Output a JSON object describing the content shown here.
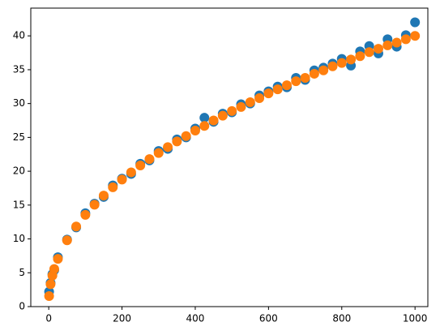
{
  "chart_data": {
    "type": "scatter",
    "x": [
      1,
      5,
      10,
      15,
      25,
      50,
      75,
      100,
      125,
      150,
      175,
      200,
      225,
      250,
      275,
      300,
      325,
      350,
      375,
      400,
      425,
      450,
      475,
      500,
      525,
      550,
      575,
      600,
      625,
      650,
      675,
      700,
      725,
      750,
      775,
      800,
      825,
      850,
      875,
      900,
      925,
      950,
      975,
      1000
    ],
    "series": [
      {
        "color": "#1f77b4",
        "values": [
          2.2,
          3.5,
          4.8,
          5.4,
          7.3,
          9.9,
          11.7,
          13.8,
          15.2,
          16.2,
          17.9,
          18.9,
          19.6,
          21.1,
          21.6,
          23.0,
          23.3,
          24.7,
          25.0,
          26.3,
          27.9,
          27.3,
          28.5,
          28.7,
          29.9,
          30.0,
          31.2,
          31.8,
          32.5,
          32.4,
          33.8,
          33.5,
          34.9,
          35.3,
          35.9,
          36.6,
          35.6,
          37.7,
          38.5,
          37.4,
          39.5,
          38.4,
          40.1,
          42.0
        ]
      },
      {
        "color": "#ff7f0e",
        "values": [
          1.56,
          3.31,
          4.59,
          5.56,
          7.06,
          9.79,
          11.84,
          13.55,
          15.05,
          16.4,
          17.63,
          18.77,
          19.84,
          20.85,
          21.8,
          22.7,
          23.57,
          24.4,
          25.2,
          26.0,
          26.7,
          27.5,
          28.2,
          28.9,
          29.5,
          30.2,
          30.8,
          31.5,
          32.1,
          32.7,
          33.3,
          33.8,
          34.4,
          34.9,
          35.5,
          36.0,
          36.5,
          37.0,
          37.6,
          38.1,
          38.6,
          39.0,
          39.5,
          40.0
        ]
      }
    ],
    "xlim": [
      -49,
      1035
    ],
    "xticks": [
      0,
      200,
      400,
      600,
      800,
      1000
    ],
    "ylim": [
      0,
      44.1
    ],
    "yticks": [
      0,
      5,
      10,
      15,
      20,
      25,
      30,
      35,
      40
    ],
    "grid": false
  }
}
